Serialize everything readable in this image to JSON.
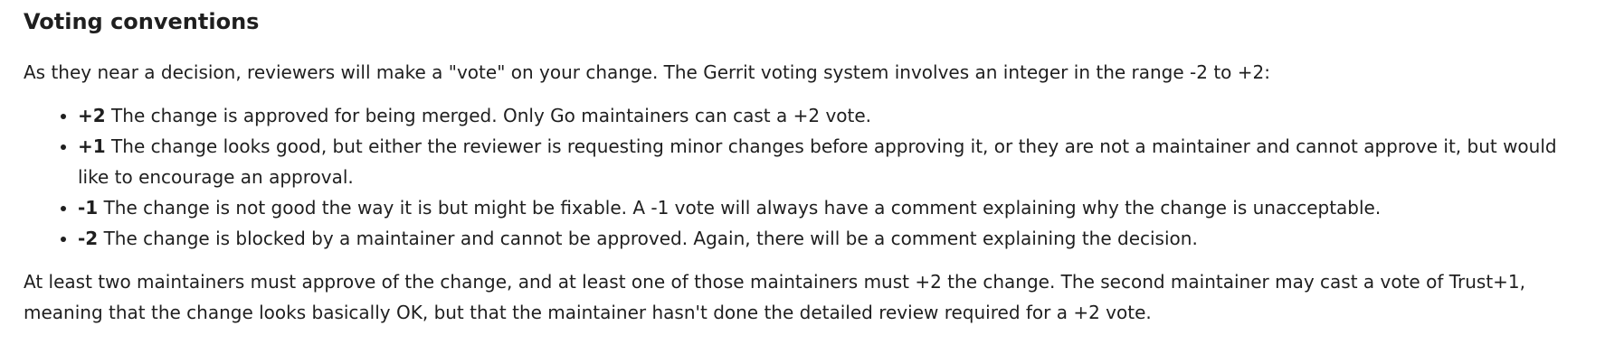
{
  "heading": "Voting conventions",
  "intro": "As they near a decision, reviewers will make a \"vote\" on your change. The Gerrit voting system involves an integer in the range -2 to +2:",
  "votes": [
    {
      "score": "+2",
      "text": "The change is approved for being merged. Only Go maintainers can cast a +2 vote."
    },
    {
      "score": "+1",
      "text": "The change looks good, but either the reviewer is requesting minor changes before approving it, or they are not a maintainer and cannot approve it, but would like to encourage an approval."
    },
    {
      "score": "-1",
      "text": "The change is not good the way it is but might be fixable. A -1 vote will always have a comment explaining why the change is unacceptable."
    },
    {
      "score": "-2",
      "text": "The change is blocked by a maintainer and cannot be approved. Again, there will be a comment explaining the decision."
    }
  ],
  "closing": "At least two maintainers must approve of the change, and at least one of those maintainers must +2 the change. The second maintainer may cast a vote of Trust+1, meaning that the change looks basically OK, but that the maintainer hasn't done the detailed review required for a +2 vote."
}
